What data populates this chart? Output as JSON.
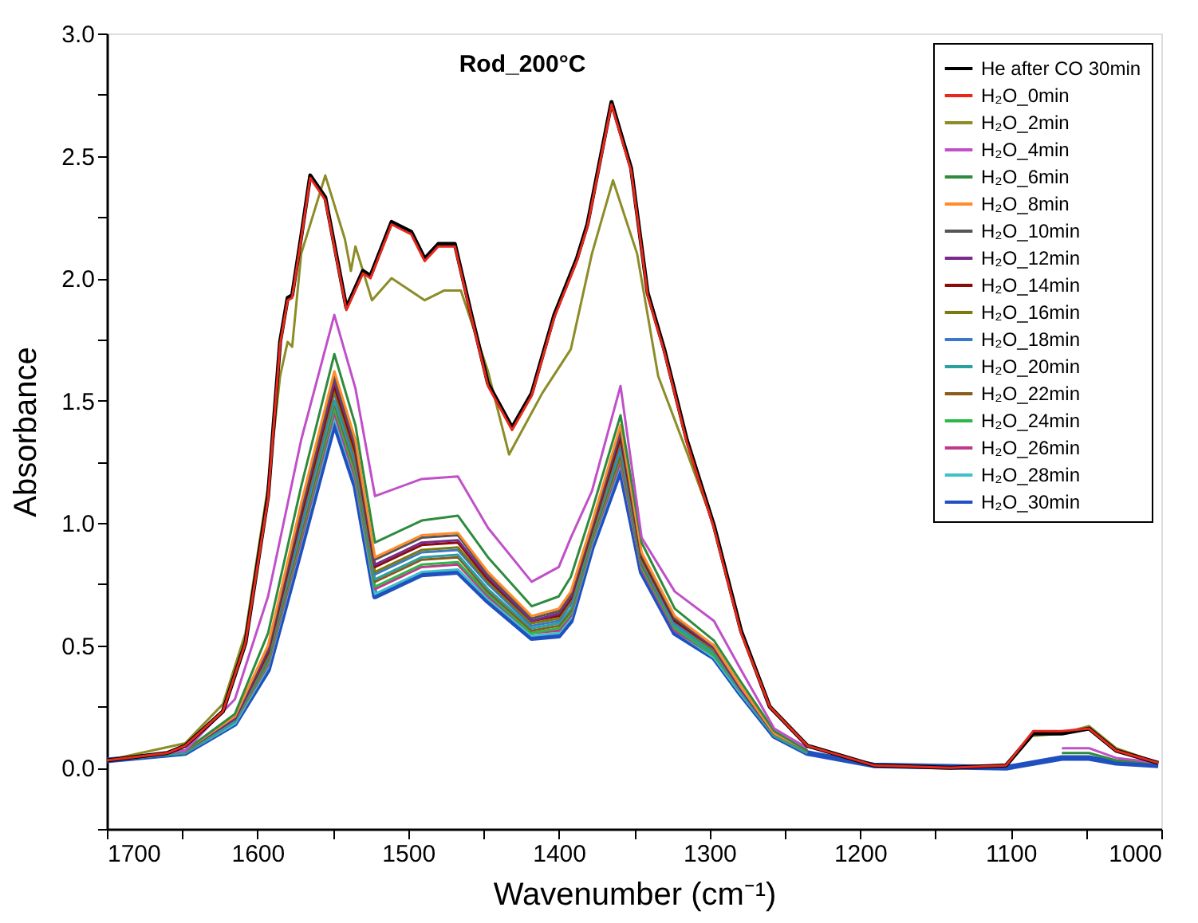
{
  "chart_data": {
    "type": "line",
    "title": "Rod_200°C",
    "xlabel": "Wavenumber (cm⁻¹)",
    "ylabel": "Absorbance",
    "xlim": [
      1700,
      1000
    ],
    "ylim": [
      -0.25,
      3.0
    ],
    "xticks": [
      1700,
      {
        "value": 1650,
        "label": null
      },
      1600,
      {
        "value": 1550,
        "label": null
      },
      1500,
      {
        "value": 1450,
        "label": null
      },
      1400,
      {
        "value": 1350,
        "label": null
      },
      1300,
      {
        "value": 1250,
        "label": null
      },
      1200,
      {
        "value": 1150,
        "label": null
      },
      1100,
      {
        "value": 1050,
        "label": null
      },
      1000
    ],
    "yticks": [
      {
        "value": -0.25,
        "label": null
      },
      {
        "value": 0,
        "label": "0.0"
      },
      {
        "value": 0.25,
        "label": null
      },
      0.5,
      {
        "value": 0.75,
        "label": null
      },
      {
        "value": 1,
        "label": "1.0"
      },
      {
        "value": 1.25,
        "label": null
      },
      1.5,
      {
        "value": 1.75,
        "label": null
      },
      {
        "value": 2,
        "label": "2.0"
      },
      {
        "value": 2.25,
        "label": null
      },
      2.5,
      {
        "value": 2.75,
        "label": null
      },
      {
        "value": 3,
        "label": "3.0"
      }
    ],
    "grid": false,
    "legend": "top right",
    "marker": "none",
    "line_style": "solid",
    "x": [
      1700,
      1648,
      1615,
      1593,
      1571,
      1549,
      1535,
      1522,
      1491,
      1467,
      1447,
      1418,
      1400,
      1392,
      1378,
      1359,
      1345,
      1323,
      1297,
      1279,
      1257,
      1235,
      1191,
      1103,
      1066,
      1048,
      1030,
      1002
    ],
    "series": [
      {
        "name": "He after CO 30min",
        "color": "#000000",
        "x": [
          1700,
          1660,
          1648,
          1623,
          1608,
          1593,
          1585,
          1580,
          1577,
          1571,
          1565,
          1555,
          1541,
          1530,
          1525,
          1511,
          1498,
          1489,
          1480,
          1469,
          1458,
          1447,
          1431,
          1418,
          1403,
          1388,
          1381,
          1365,
          1352,
          1341,
          1330,
          1315,
          1297,
          1279,
          1260,
          1235,
          1191,
          1140,
          1103,
          1085,
          1066,
          1048,
          1030,
          1002
        ],
        "values": [
          0.03,
          0.06,
          0.09,
          0.23,
          0.51,
          1.11,
          1.74,
          1.92,
          1.93,
          2.17,
          2.42,
          2.33,
          1.88,
          2.03,
          2.01,
          2.23,
          2.19,
          2.08,
          2.14,
          2.14,
          1.85,
          1.57,
          1.39,
          1.53,
          1.85,
          2.08,
          2.22,
          2.72,
          2.45,
          1.94,
          1.71,
          1.34,
          0.99,
          0.56,
          0.25,
          0.09,
          0.01,
          0.0,
          0.01,
          0.14,
          0.14,
          0.16,
          0.07,
          0.02
        ]
      },
      {
        "name": "H₂O_0min",
        "color": "#e8281c",
        "x": [
          1700,
          1660,
          1648,
          1623,
          1608,
          1593,
          1585,
          1580,
          1577,
          1571,
          1565,
          1555,
          1541,
          1530,
          1525,
          1511,
          1498,
          1489,
          1480,
          1469,
          1458,
          1447,
          1431,
          1418,
          1403,
          1388,
          1381,
          1365,
          1352,
          1341,
          1330,
          1315,
          1297,
          1279,
          1260,
          1235,
          1191,
          1140,
          1103,
          1085,
          1066,
          1048,
          1030,
          1002
        ],
        "values": [
          0.03,
          0.06,
          0.09,
          0.23,
          0.51,
          1.1,
          1.73,
          1.91,
          1.92,
          2.16,
          2.41,
          2.32,
          1.87,
          2.02,
          2.0,
          2.22,
          2.18,
          2.07,
          2.13,
          2.13,
          1.84,
          1.56,
          1.38,
          1.52,
          1.84,
          2.07,
          2.21,
          2.71,
          2.44,
          1.93,
          1.7,
          1.33,
          0.98,
          0.55,
          0.25,
          0.09,
          0.01,
          0.0,
          0.01,
          0.15,
          0.15,
          0.16,
          0.07,
          0.02
        ]
      },
      {
        "name": "H₂O_2min",
        "color": "#8c8c28",
        "x": [
          1700,
          1648,
          1623,
          1608,
          1593,
          1585,
          1580,
          1577,
          1571,
          1555,
          1542,
          1538,
          1535,
          1524,
          1511,
          1489,
          1476,
          1465,
          1447,
          1433,
          1411,
          1392,
          1378,
          1364,
          1348,
          1334,
          1315,
          1297,
          1279,
          1260,
          1235,
          1191,
          1140,
          1103,
          1085,
          1066,
          1048,
          1030,
          1002
        ],
        "values": [
          0.03,
          0.1,
          0.26,
          0.55,
          1.15,
          1.6,
          1.74,
          1.72,
          2.1,
          2.42,
          2.16,
          2.03,
          2.13,
          1.91,
          2.0,
          1.91,
          1.95,
          1.95,
          1.62,
          1.28,
          1.53,
          1.71,
          2.1,
          2.4,
          2.1,
          1.6,
          1.29,
          0.99,
          0.56,
          0.25,
          0.09,
          null,
          null,
          null,
          0.13,
          0.14,
          0.17,
          0.08,
          0.02
        ]
      },
      {
        "name": "H₂O_4min",
        "color": "#c050c8",
        "values": [
          0.03,
          0.07,
          0.28,
          0.7,
          1.34,
          1.85,
          1.55,
          1.11,
          1.18,
          1.19,
          0.98,
          0.76,
          0.82,
          0.94,
          1.13,
          1.56,
          0.94,
          0.72,
          0.6,
          0.4,
          0.16,
          0.08,
          null,
          null,
          0.08,
          0.08,
          0.04,
          0.02
        ]
      },
      {
        "name": "H₂O_6min",
        "color": "#2e8b3e",
        "values": [
          0.03,
          0.07,
          0.22,
          0.55,
          1.15,
          1.69,
          1.4,
          0.92,
          1.01,
          1.03,
          0.86,
          0.66,
          0.7,
          0.78,
          1.05,
          1.44,
          0.92,
          0.65,
          0.52,
          0.35,
          0.15,
          0.07,
          null,
          null,
          0.06,
          0.06,
          0.03,
          0.02
        ]
      },
      {
        "name": "H₂O_8min",
        "color": "#ff8c2a",
        "values": [
          0.03,
          0.07,
          0.21,
          0.5,
          1.08,
          1.62,
          1.34,
          0.86,
          0.95,
          0.96,
          0.8,
          0.62,
          0.65,
          0.72,
          1.0,
          1.4,
          0.88,
          0.62,
          0.5,
          0.33,
          0.14,
          0.07,
          null,
          null,
          null,
          null,
          null,
          null
        ]
      },
      {
        "name": "H₂O_10min",
        "color": "#555555",
        "values": [
          0.03,
          0.07,
          0.21,
          0.49,
          1.06,
          1.6,
          1.32,
          0.85,
          0.94,
          0.95,
          0.79,
          0.61,
          0.64,
          0.71,
          0.99,
          1.38,
          0.87,
          0.61,
          0.5,
          0.33,
          0.14,
          0.07,
          null,
          null,
          null,
          null,
          null,
          null
        ]
      },
      {
        "name": "H₂O_12min",
        "color": "#7a2a8a",
        "values": [
          0.03,
          0.07,
          0.2,
          0.48,
          1.05,
          1.58,
          1.31,
          0.83,
          0.92,
          0.93,
          0.78,
          0.6,
          0.63,
          0.7,
          0.98,
          1.37,
          0.87,
          0.61,
          0.49,
          0.32,
          0.14,
          0.07,
          null,
          null,
          null,
          null,
          null,
          null
        ]
      },
      {
        "name": "H₂O_14min",
        "color": "#8b0a0a",
        "values": [
          0.03,
          0.07,
          0.2,
          0.47,
          1.03,
          1.56,
          1.29,
          0.82,
          0.91,
          0.92,
          0.77,
          0.6,
          0.62,
          0.69,
          0.97,
          1.35,
          0.86,
          0.6,
          0.49,
          0.32,
          0.14,
          0.07,
          null,
          null,
          null,
          null,
          null,
          null
        ]
      },
      {
        "name": "H₂O_16min",
        "color": "#7a7a10",
        "values": [
          0.03,
          0.07,
          0.2,
          0.46,
          1.02,
          1.54,
          1.27,
          0.8,
          0.89,
          0.9,
          0.76,
          0.59,
          0.61,
          0.68,
          0.96,
          1.34,
          0.85,
          0.6,
          0.48,
          0.32,
          0.14,
          0.07,
          null,
          null,
          null,
          null,
          null,
          null
        ]
      },
      {
        "name": "H₂O_18min",
        "color": "#3a78c8",
        "values": [
          0.03,
          0.07,
          0.2,
          0.45,
          1.0,
          1.53,
          1.25,
          0.79,
          0.88,
          0.89,
          0.75,
          0.58,
          0.6,
          0.67,
          0.96,
          1.32,
          0.84,
          0.59,
          0.48,
          0.32,
          0.14,
          0.07,
          null,
          null,
          null,
          null,
          null,
          null
        ]
      },
      {
        "name": "H₂O_20min",
        "color": "#2aa0a0",
        "values": [
          0.03,
          0.06,
          0.19,
          0.45,
          0.98,
          1.5,
          1.24,
          0.77,
          0.86,
          0.87,
          0.73,
          0.57,
          0.59,
          0.65,
          0.95,
          1.3,
          0.84,
          0.58,
          0.47,
          0.31,
          0.13,
          0.06,
          null,
          null,
          null,
          null,
          null,
          null
        ]
      },
      {
        "name": "H₂O_22min",
        "color": "#8b5a1a",
        "values": [
          0.03,
          0.06,
          0.19,
          0.44,
          0.96,
          1.49,
          1.22,
          0.76,
          0.85,
          0.86,
          0.72,
          0.56,
          0.58,
          0.64,
          0.94,
          1.28,
          0.83,
          0.58,
          0.47,
          0.31,
          0.13,
          0.06,
          null,
          null,
          null,
          null,
          null,
          null
        ]
      },
      {
        "name": "H₂O_24min",
        "color": "#2ab84a",
        "values": [
          0.03,
          0.06,
          0.19,
          0.43,
          0.95,
          1.47,
          1.2,
          0.74,
          0.83,
          0.84,
          0.71,
          0.55,
          0.57,
          0.63,
          0.93,
          1.27,
          0.82,
          0.57,
          0.46,
          0.31,
          0.13,
          0.06,
          null,
          null,
          null,
          null,
          null,
          null
        ]
      },
      {
        "name": "H₂O_26min",
        "color": "#c03a8a",
        "values": [
          0.03,
          0.06,
          0.19,
          0.42,
          0.93,
          1.45,
          1.18,
          0.73,
          0.82,
          0.83,
          0.7,
          0.55,
          0.56,
          0.62,
          0.92,
          1.25,
          0.81,
          0.56,
          0.46,
          0.31,
          0.13,
          0.06,
          null,
          null,
          null,
          null,
          null,
          null
        ]
      },
      {
        "name": "H₂O_28min",
        "color": "#40c0c8",
        "values": [
          0.03,
          0.06,
          0.18,
          0.41,
          0.92,
          1.43,
          1.17,
          0.71,
          0.8,
          0.81,
          0.69,
          0.54,
          0.55,
          0.61,
          0.91,
          1.24,
          0.81,
          0.56,
          0.45,
          0.3,
          0.13,
          0.06,
          null,
          null,
          null,
          null,
          null,
          null
        ]
      },
      {
        "name": "H₂O_30min",
        "color": "#2050c0",
        "values": [
          0.03,
          0.06,
          0.18,
          0.4,
          0.9,
          1.41,
          1.15,
          0.7,
          0.79,
          0.8,
          0.68,
          0.53,
          0.54,
          0.6,
          0.9,
          1.22,
          0.8,
          0.55,
          0.45,
          0.3,
          0.13,
          0.06,
          0.01,
          0.0,
          0.04,
          0.04,
          0.02,
          0.01
        ]
      }
    ]
  }
}
